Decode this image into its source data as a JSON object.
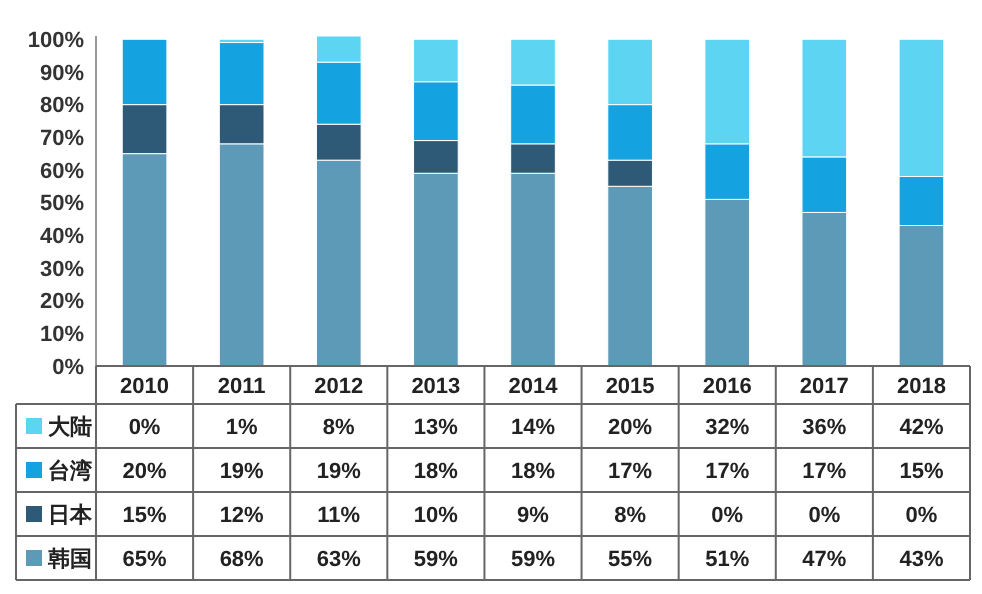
{
  "chart_data": {
    "type": "bar",
    "stacked": true,
    "categories": [
      "2010",
      "2011",
      "2012",
      "2013",
      "2014",
      "2015",
      "2016",
      "2017",
      "2018"
    ],
    "ylim": [
      0,
      101
    ],
    "yticks": [
      {
        "value": 0,
        "label": "0%"
      },
      {
        "value": 10,
        "label": "10%"
      },
      {
        "value": 20,
        "label": "20%"
      },
      {
        "value": 30,
        "label": "30%"
      },
      {
        "value": 40,
        "label": "40%"
      },
      {
        "value": 50,
        "label": "50%"
      },
      {
        "value": 60,
        "label": "60%"
      },
      {
        "value": 70,
        "label": "70%"
      },
      {
        "value": 80,
        "label": "80%"
      },
      {
        "value": 90,
        "label": "90%"
      },
      {
        "value": 100,
        "label": "100%"
      }
    ],
    "legend": "bottom left",
    "series": [
      {
        "name": "韩国",
        "color": "#5d9ab8",
        "values": [
          65,
          68,
          63,
          59,
          59,
          55,
          51,
          47,
          43
        ],
        "value_labels": [
          "65%",
          "68%",
          "63%",
          "59%",
          "59%",
          "55%",
          "51%",
          "47%",
          "43%"
        ]
      },
      {
        "name": "日本",
        "color": "#2e5a78",
        "values": [
          15,
          12,
          11,
          10,
          9,
          8,
          0,
          0,
          0
        ],
        "value_labels": [
          "15%",
          "12%",
          "11%",
          "10%",
          "9%",
          "8%",
          "0%",
          "0%",
          "0%"
        ]
      },
      {
        "name": "台湾",
        "color": "#14a3e0",
        "values": [
          20,
          19,
          19,
          18,
          18,
          17,
          17,
          17,
          15
        ],
        "value_labels": [
          "20%",
          "19%",
          "19%",
          "18%",
          "18%",
          "17%",
          "17%",
          "17%",
          "15%"
        ]
      },
      {
        "name": "大陆",
        "color": "#5cd4f2",
        "values": [
          0,
          1,
          8,
          13,
          14,
          20,
          32,
          36,
          42
        ],
        "value_labels": [
          "0%",
          "1%",
          "8%",
          "13%",
          "14%",
          "20%",
          "32%",
          "36%",
          "42%"
        ]
      }
    ]
  }
}
